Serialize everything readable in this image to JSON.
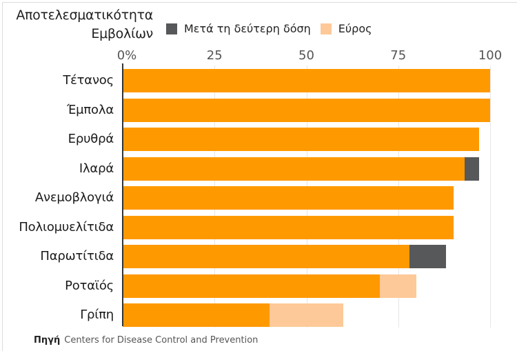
{
  "colors": {
    "primary": "#ff9900",
    "second_dose": "#57585a",
    "range": "#fdc998",
    "grid": "#e6e6e6",
    "axis": "#333333"
  },
  "title": {
    "line1": "Αποτελεσματικότητα",
    "line2": "Εμβολίων"
  },
  "legend": [
    {
      "label": "Μετά τη δεύτερη δόση",
      "color": "#57585a"
    },
    {
      "label": "Εύρος",
      "color": "#fdc998"
    }
  ],
  "axis": {
    "ticks": [
      "0%",
      "25",
      "50",
      "75",
      "100"
    ],
    "tick_values": [
      0,
      25,
      50,
      75,
      100
    ]
  },
  "source": {
    "label": "Πηγή",
    "text": "Centers for Disease Control and Prevention"
  },
  "chart_data": {
    "type": "bar",
    "orientation": "horizontal",
    "title": "Αποτελεσματικότητα Εμβολίων",
    "xlabel": "",
    "ylabel": "",
    "xlim": [
      0,
      100
    ],
    "grid": true,
    "legend_position": "top",
    "categories": [
      "Τέτανος",
      "Έμπολα",
      "Ερυθρά",
      "Ιλαρά",
      "Ανεμοβλογιά",
      "Πολιομυελίτιδα",
      "Παρωτίτιδα",
      "Ροταϊός",
      "Γρίπη"
    ],
    "series": [
      {
        "name": "Αποτελεσματικότητα",
        "color": "#ff9900",
        "values": [
          100,
          100,
          97,
          93,
          90,
          90,
          78,
          70,
          40
        ]
      },
      {
        "name": "Μετά τη δεύτερη δόση",
        "color": "#57585a",
        "values": [
          0,
          0,
          0,
          4,
          0,
          0,
          10,
          0,
          0
        ]
      },
      {
        "name": "Εύρος",
        "color": "#fdc998",
        "values": [
          0,
          0,
          0,
          0,
          0,
          0,
          0,
          10,
          20
        ]
      }
    ],
    "totals": [
      100,
      100,
      97,
      97,
      90,
      90,
      88,
      80,
      60
    ],
    "source": "Πηγή Centers for Disease Control and Prevention"
  }
}
